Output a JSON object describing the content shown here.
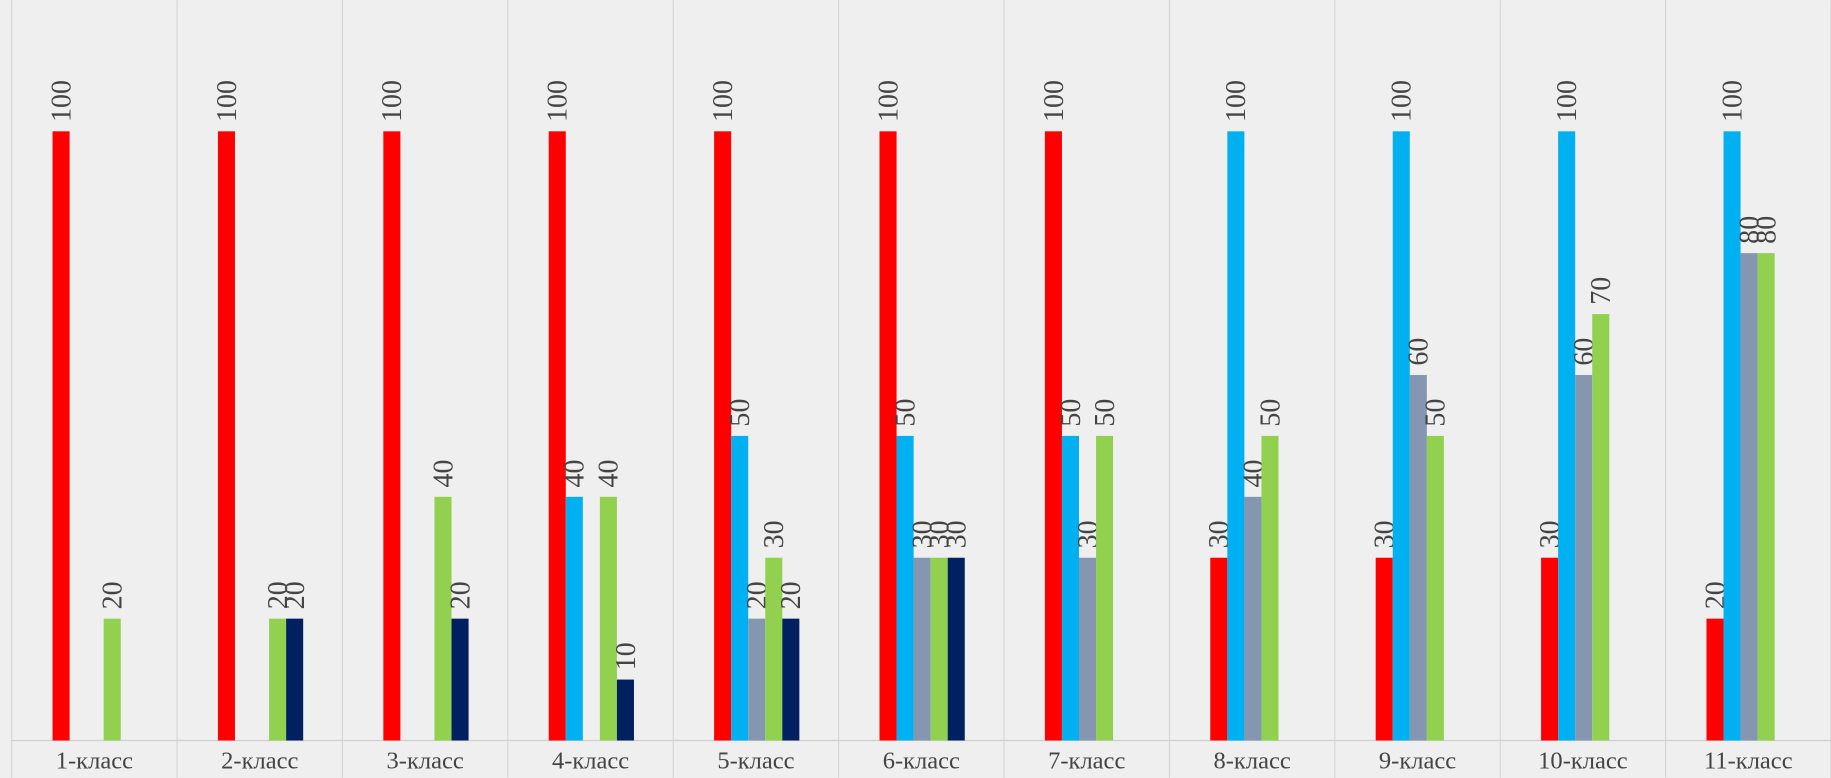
{
  "chart_data": {
    "type": "bar",
    "categories": [
      "1-класс",
      "2-класс",
      "3-класс",
      "4-класс",
      "5-класс",
      "6-класс",
      "7-класс",
      "8-класс",
      "9-класс",
      "10-класс",
      "11-класс"
    ],
    "series": [
      {
        "color": "#ff0000",
        "values": [
          100,
          100,
          100,
          100,
          100,
          100,
          100,
          30,
          30,
          30,
          20
        ]
      },
      {
        "color": "#00b0f0",
        "values": [
          null,
          null,
          null,
          40,
          50,
          50,
          50,
          100,
          100,
          100,
          100
        ]
      },
      {
        "color": "#8496b0",
        "values": [
          null,
          null,
          null,
          null,
          20,
          30,
          30,
          40,
          60,
          60,
          80
        ]
      },
      {
        "color": "#92d050",
        "values": [
          20,
          20,
          40,
          40,
          30,
          30,
          50,
          50,
          50,
          70,
          80
        ]
      },
      {
        "color": "#002060",
        "values": [
          null,
          20,
          20,
          10,
          20,
          30,
          null,
          null,
          null,
          null,
          null
        ]
      }
    ],
    "ylim": [
      0,
      120
    ]
  }
}
